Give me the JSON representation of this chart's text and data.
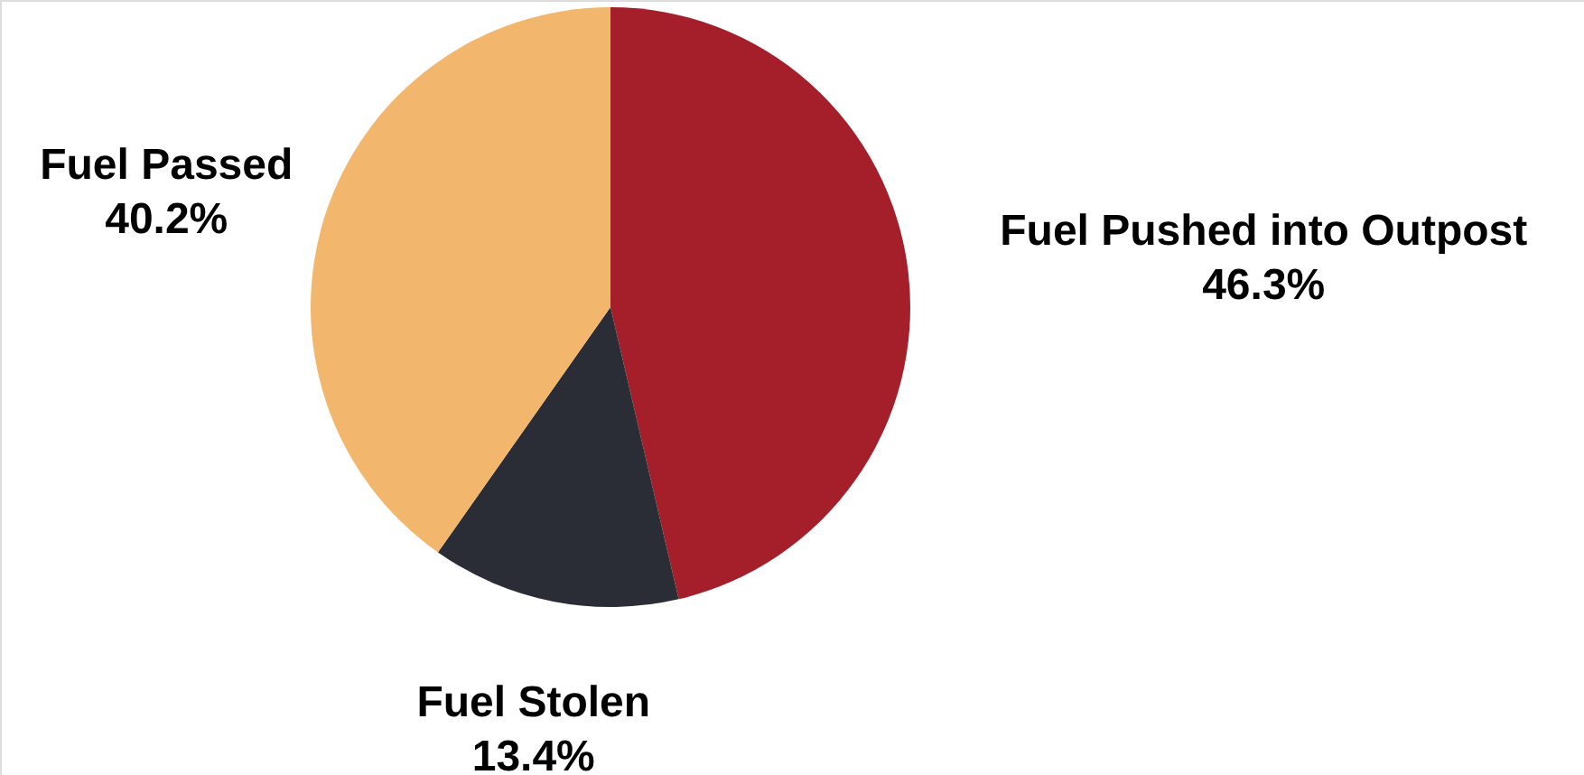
{
  "chart_data": {
    "type": "pie",
    "categories": [
      "Fuel Pushed into Outpost",
      "Fuel Stolen",
      "Fuel Passed"
    ],
    "values": [
      46.3,
      13.4,
      40.2
    ],
    "value_labels": [
      "46.3%",
      "13.4%",
      "40.2%"
    ],
    "colors": [
      "#a51f2b",
      "#2a2d35",
      "#f2b76c"
    ]
  }
}
